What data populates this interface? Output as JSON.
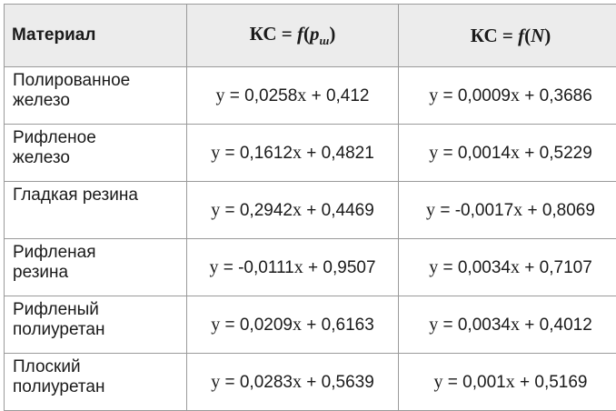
{
  "header": {
    "material": "Материал",
    "col2": {
      "prefix": "КС = ",
      "f": "f",
      "open": "(",
      "var": "p",
      "sub": "ш",
      "close": ")"
    },
    "col3": {
      "prefix": "КС = ",
      "f": "f",
      "open": "(",
      "var": "N",
      "close": ")"
    }
  },
  "rows": [
    {
      "material": [
        "Полированное",
        "железо"
      ],
      "eq1": {
        "a": "0,0258",
        "sign": "+",
        "b": "0,412"
      },
      "eq2": {
        "a": "0,0009",
        "sign": "+",
        "b": "0,3686"
      }
    },
    {
      "material": [
        "Рифленое",
        "железо"
      ],
      "eq1": {
        "a": "0,1612",
        "sign": "+",
        "b": "0,4821"
      },
      "eq2": {
        "a": "0,0014",
        "sign": "+",
        "b": "0,5229"
      }
    },
    {
      "material": [
        "Гладкая резина"
      ],
      "eq1": {
        "a": "0,2942",
        "sign": "+",
        "b": "0,4469"
      },
      "eq2": {
        "a": "-0,0017",
        "sign": "+",
        "b": "0,8069"
      }
    },
    {
      "material": [
        "Рифленая",
        "резина"
      ],
      "eq1": {
        "a": "-0,0111",
        "sign": "+",
        "b": "0,9507"
      },
      "eq2": {
        "a": "0,0034",
        "sign": "+",
        "b": "0,7107"
      }
    },
    {
      "material": [
        "Рифленый",
        "полиуретан"
      ],
      "eq1": {
        "a": "0,0209",
        "sign": "+",
        "b": "0,6163"
      },
      "eq2": {
        "a": "0,0034",
        "sign": "+",
        "b": "0,4012"
      }
    },
    {
      "material": [
        "Плоский",
        "полиуретан"
      ],
      "eq1": {
        "a": "0,0283",
        "sign": "+",
        "b": "0,5639"
      },
      "eq2": {
        "a": "0,001",
        "sign": "+",
        "b": "0,5169"
      }
    }
  ]
}
